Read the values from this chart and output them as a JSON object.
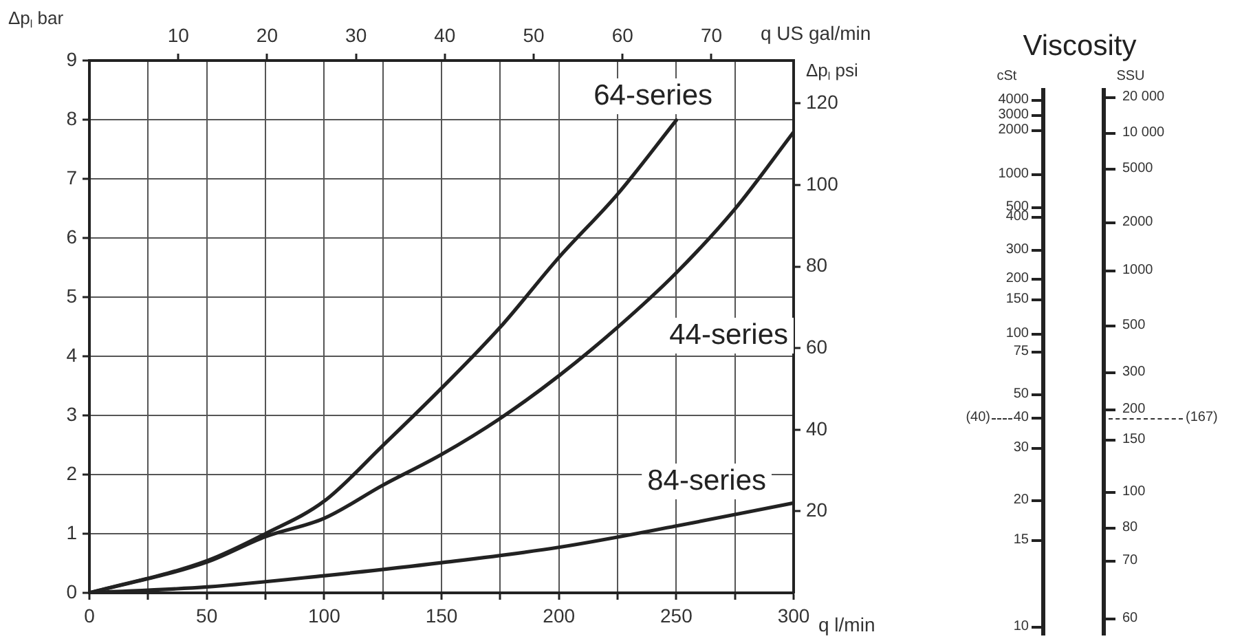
{
  "chart_data": [
    {
      "type": "line",
      "xlabel": "q l/min",
      "x2label": "q US gal/min",
      "ylabel": "Δp$_{l}$ bar",
      "y2label": "Δp$_{l}$ psi",
      "xlim": [
        0,
        300
      ],
      "xticks": [
        0,
        {
          "value": 25,
          "label": null
        },
        50,
        {
          "value": 75,
          "label": null
        },
        100,
        {
          "value": 125,
          "label": null
        },
        150,
        {
          "value": 175,
          "label": null
        },
        200,
        {
          "value": 225,
          "label": null
        },
        250,
        {
          "value": 275,
          "label": null
        },
        300
      ],
      "x2lim": [
        0,
        79.25
      ],
      "x2ticks": [
        10,
        20,
        30,
        40,
        50,
        60,
        70
      ],
      "ylim": [
        0,
        9
      ],
      "yticks": [
        0,
        1,
        2,
        3,
        4,
        5,
        6,
        7,
        8,
        9
      ],
      "y2lim": [
        0,
        130.53
      ],
      "y2ticks": [
        20,
        40,
        60,
        80,
        100,
        120
      ],
      "grid": true,
      "legend": false,
      "marker": "none",
      "line_style": "solid",
      "series": [
        {
          "name": "64-series",
          "color": "#222222",
          "x": [
            0,
            50,
            75,
            100,
            125,
            150,
            175,
            200,
            225,
            250
          ],
          "values": [
            0,
            0.54,
            1.0,
            1.55,
            2.49,
            3.46,
            4.49,
            5.67,
            6.74,
            7.99
          ]
        },
        {
          "name": "44-series",
          "color": "#222222",
          "x": [
            0,
            50,
            75,
            100,
            125,
            150,
            175,
            200,
            225,
            250,
            275,
            300
          ],
          "values": [
            0,
            0.52,
            0.95,
            1.26,
            1.82,
            2.34,
            2.95,
            3.67,
            4.49,
            5.41,
            6.49,
            7.79
          ]
        },
        {
          "name": "84-series",
          "color": "#222222",
          "x": [
            0,
            50,
            100,
            150,
            200,
            250,
            300
          ],
          "values": [
            0,
            0.1,
            0.29,
            0.51,
            0.77,
            1.13,
            1.52
          ]
        }
      ]
    },
    {
      "type": "other",
      "title": "Viscosity",
      "annotations": [
        "cSt",
        "4000",
        "3000",
        "2000",
        "1000",
        "500",
        "400",
        "300",
        "200",
        "150",
        "100",
        "75",
        "50",
        "40",
        "30",
        "20",
        "15",
        "10",
        "SSU",
        "20 000",
        "10 000",
        "5000",
        "2000",
        "1000",
        "500",
        "300",
        "200",
        "150",
        "100",
        "80",
        "70",
        "60",
        "(40)",
        "(167)"
      ]
    }
  ]
}
